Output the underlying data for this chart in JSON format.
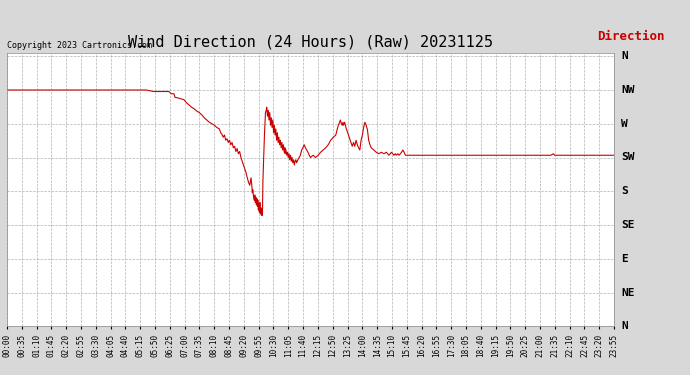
{
  "title": "Wind Direction (24 Hours) (Raw) 20231125",
  "copyright": "Copyright 2023 Cartronics.com",
  "legend_label": "Direction",
  "legend_color": "#cc0000",
  "line_color": "#cc0000",
  "background_color": "#d8d8d8",
  "plot_bg_color": "#ffffff",
  "grid_color": "#aaaaaa",
  "ytick_labels": [
    "N",
    "NW",
    "W",
    "SW",
    "S",
    "SE",
    "E",
    "NE",
    "N"
  ],
  "ytick_values": [
    360,
    315,
    270,
    225,
    180,
    135,
    90,
    45,
    0
  ],
  "ylim_min": 0,
  "ylim_max": 365,
  "title_fontsize": 11,
  "copyright_fontsize": 6,
  "legend_fontsize": 9,
  "ytick_fontsize": 8,
  "xtick_fontsize": 5.5,
  "xtick_labels": [
    "00:00",
    "00:35",
    "01:10",
    "01:45",
    "02:20",
    "02:55",
    "03:30",
    "04:05",
    "04:40",
    "05:15",
    "05:50",
    "06:25",
    "07:00",
    "07:35",
    "08:10",
    "08:45",
    "09:20",
    "09:55",
    "10:30",
    "11:05",
    "11:40",
    "12:15",
    "12:50",
    "13:25",
    "14:00",
    "14:35",
    "15:10",
    "15:45",
    "16:20",
    "16:55",
    "17:30",
    "18:05",
    "18:40",
    "19:15",
    "19:50",
    "20:25",
    "21:00",
    "21:35",
    "22:10",
    "22:45",
    "23:20",
    "23:55"
  ],
  "key_points": [
    [
      0.0,
      315
    ],
    [
      0.5,
      315
    ],
    [
      1.0,
      315
    ],
    [
      1.5,
      315
    ],
    [
      2.0,
      315
    ],
    [
      2.5,
      315
    ],
    [
      3.0,
      315
    ],
    [
      3.5,
      315
    ],
    [
      4.0,
      315
    ],
    [
      4.5,
      315
    ],
    [
      5.0,
      315
    ],
    [
      5.5,
      315
    ],
    [
      5.8,
      313
    ],
    [
      6.0,
      313
    ],
    [
      6.2,
      313
    ],
    [
      6.4,
      313
    ],
    [
      6.5,
      310
    ],
    [
      6.6,
      310
    ],
    [
      6.65,
      305
    ],
    [
      6.7,
      305
    ],
    [
      7.0,
      302
    ],
    [
      7.1,
      298
    ],
    [
      7.2,
      295
    ],
    [
      7.3,
      292
    ],
    [
      7.4,
      290
    ],
    [
      7.5,
      287
    ],
    [
      7.6,
      285
    ],
    [
      7.7,
      282
    ],
    [
      7.8,
      278
    ],
    [
      7.9,
      275
    ],
    [
      8.0,
      272
    ],
    [
      8.1,
      270
    ],
    [
      8.2,
      268
    ],
    [
      8.3,
      265
    ],
    [
      8.4,
      263
    ],
    [
      8.45,
      258
    ],
    [
      8.5,
      256
    ],
    [
      8.55,
      252
    ],
    [
      8.6,
      255
    ],
    [
      8.65,
      248
    ],
    [
      8.7,
      250
    ],
    [
      8.75,
      245
    ],
    [
      8.8,
      248
    ],
    [
      8.85,
      242
    ],
    [
      8.9,
      245
    ],
    [
      8.95,
      238
    ],
    [
      9.0,
      240
    ],
    [
      9.05,
      233
    ],
    [
      9.1,
      237
    ],
    [
      9.15,
      230
    ],
    [
      9.2,
      233
    ],
    [
      9.25,
      225
    ],
    [
      9.3,
      220
    ],
    [
      9.35,
      215
    ],
    [
      9.4,
      210
    ],
    [
      9.45,
      205
    ],
    [
      9.5,
      198
    ],
    [
      9.55,
      192
    ],
    [
      9.6,
      188
    ],
    [
      9.62,
      192
    ],
    [
      9.65,
      198
    ],
    [
      9.68,
      188
    ],
    [
      9.7,
      178
    ],
    [
      9.72,
      182
    ],
    [
      9.75,
      172
    ],
    [
      9.78,
      168
    ],
    [
      9.8,
      175
    ],
    [
      9.82,
      165
    ],
    [
      9.84,
      172
    ],
    [
      9.86,
      162
    ],
    [
      9.88,
      170
    ],
    [
      9.9,
      160
    ],
    [
      9.92,
      168
    ],
    [
      9.94,
      155
    ],
    [
      9.96,
      163
    ],
    [
      9.98,
      152
    ],
    [
      10.0,
      165
    ],
    [
      10.02,
      150
    ],
    [
      10.04,
      158
    ],
    [
      10.06,
      148
    ],
    [
      10.08,
      155
    ],
    [
      10.1,
      148
    ],
    [
      10.12,
      195
    ],
    [
      10.15,
      225
    ],
    [
      10.18,
      255
    ],
    [
      10.2,
      270
    ],
    [
      10.22,
      285
    ],
    [
      10.25,
      288
    ],
    [
      10.27,
      292
    ],
    [
      10.3,
      280
    ],
    [
      10.33,
      288
    ],
    [
      10.36,
      275
    ],
    [
      10.39,
      285
    ],
    [
      10.42,
      268
    ],
    [
      10.45,
      278
    ],
    [
      10.48,
      265
    ],
    [
      10.51,
      275
    ],
    [
      10.54,
      258
    ],
    [
      10.57,
      268
    ],
    [
      10.6,
      255
    ],
    [
      10.63,
      263
    ],
    [
      10.66,
      248
    ],
    [
      10.69,
      258
    ],
    [
      10.72,
      245
    ],
    [
      10.75,
      252
    ],
    [
      10.78,
      242
    ],
    [
      10.81,
      248
    ],
    [
      10.84,
      238
    ],
    [
      10.87,
      245
    ],
    [
      10.9,
      235
    ],
    [
      10.93,
      242
    ],
    [
      10.96,
      232
    ],
    [
      10.99,
      238
    ],
    [
      11.0,
      230
    ],
    [
      11.03,
      235
    ],
    [
      11.06,
      228
    ],
    [
      11.09,
      232
    ],
    [
      11.12,
      225
    ],
    [
      11.15,
      230
    ],
    [
      11.18,
      222
    ],
    [
      11.21,
      228
    ],
    [
      11.24,
      220
    ],
    [
      11.27,
      225
    ],
    [
      11.3,
      218
    ],
    [
      11.33,
      222
    ],
    [
      11.36,
      215
    ],
    [
      11.39,
      220
    ],
    [
      11.42,
      222
    ],
    [
      11.45,
      218
    ],
    [
      11.5,
      222
    ],
    [
      11.55,
      225
    ],
    [
      11.6,
      228
    ],
    [
      11.65,
      235
    ],
    [
      11.7,
      238
    ],
    [
      11.75,
      242
    ],
    [
      11.8,
      238
    ],
    [
      11.85,
      235
    ],
    [
      11.9,
      232
    ],
    [
      11.95,
      228
    ],
    [
      12.0,
      225
    ],
    [
      12.1,
      228
    ],
    [
      12.2,
      225
    ],
    [
      12.3,
      228
    ],
    [
      12.4,
      232
    ],
    [
      12.5,
      235
    ],
    [
      12.6,
      238
    ],
    [
      12.7,
      242
    ],
    [
      12.8,
      248
    ],
    [
      12.9,
      252
    ],
    [
      13.0,
      255
    ],
    [
      13.05,
      262
    ],
    [
      13.1,
      268
    ],
    [
      13.15,
      272
    ],
    [
      13.18,
      275
    ],
    [
      13.2,
      272
    ],
    [
      13.25,
      268
    ],
    [
      13.28,
      272
    ],
    [
      13.3,
      268
    ],
    [
      13.35,
      272
    ],
    [
      13.38,
      268
    ],
    [
      13.4,
      265
    ],
    [
      13.45,
      260
    ],
    [
      13.5,
      255
    ],
    [
      13.55,
      250
    ],
    [
      13.6,
      245
    ],
    [
      13.65,
      240
    ],
    [
      13.7,
      245
    ],
    [
      13.75,
      240
    ],
    [
      13.8,
      248
    ],
    [
      13.85,
      242
    ],
    [
      13.9,
      238
    ],
    [
      13.95,
      235
    ],
    [
      14.0,
      248
    ],
    [
      14.05,
      255
    ],
    [
      14.1,
      265
    ],
    [
      14.15,
      272
    ],
    [
      14.2,
      268
    ],
    [
      14.25,
      262
    ],
    [
      14.3,
      248
    ],
    [
      14.35,
      242
    ],
    [
      14.4,
      238
    ],
    [
      14.5,
      235
    ],
    [
      14.6,
      232
    ],
    [
      14.7,
      230
    ],
    [
      14.8,
      232
    ],
    [
      14.9,
      230
    ],
    [
      15.0,
      232
    ],
    [
      15.05,
      230
    ],
    [
      15.1,
      228
    ],
    [
      15.15,
      230
    ],
    [
      15.2,
      232
    ],
    [
      15.25,
      230
    ],
    [
      15.3,
      228
    ],
    [
      15.35,
      230
    ],
    [
      15.4,
      228
    ],
    [
      15.45,
      230
    ],
    [
      15.5,
      228
    ],
    [
      15.6,
      232
    ],
    [
      15.65,
      235
    ],
    [
      15.7,
      232
    ],
    [
      15.75,
      228
    ],
    [
      15.8,
      228
    ],
    [
      16.0,
      228
    ],
    [
      16.5,
      228
    ],
    [
      17.0,
      228
    ],
    [
      17.5,
      228
    ],
    [
      18.0,
      228
    ],
    [
      18.5,
      228
    ],
    [
      19.0,
      228
    ],
    [
      19.5,
      228
    ],
    [
      20.0,
      228
    ],
    [
      20.5,
      228
    ],
    [
      21.0,
      228
    ],
    [
      21.3,
      228
    ],
    [
      21.5,
      228
    ],
    [
      21.6,
      230
    ],
    [
      21.65,
      228
    ],
    [
      22.0,
      228
    ],
    [
      22.5,
      228
    ],
    [
      23.0,
      228
    ],
    [
      23.5,
      228
    ],
    [
      24.0,
      228
    ]
  ]
}
